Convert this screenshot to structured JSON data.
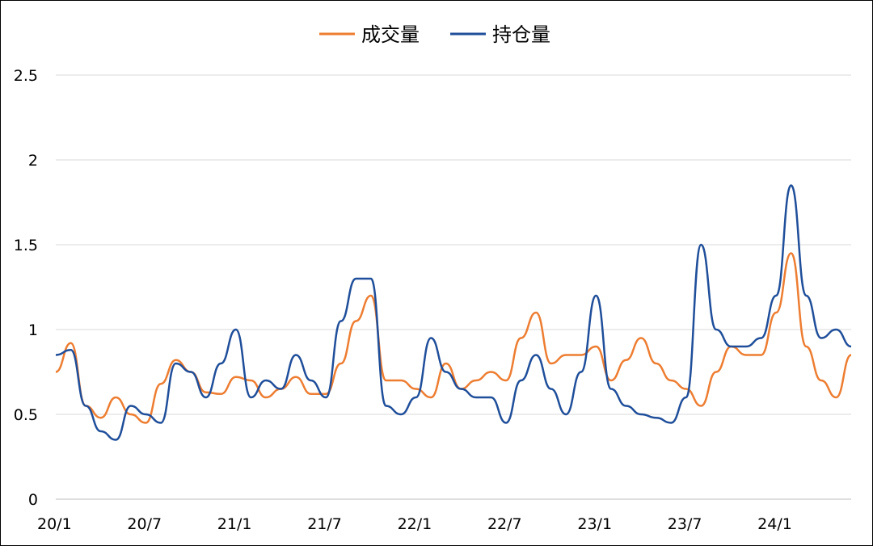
{
  "chart_data": {
    "type": "line",
    "title": "",
    "xlabel": "",
    "ylabel": "",
    "ylim": [
      0,
      2.5
    ],
    "yticks": [
      "0",
      "0.5",
      "1",
      "1.5",
      "2",
      "2.5"
    ],
    "xticks": [
      "20/1",
      "20/7",
      "21/1",
      "21/7",
      "22/1",
      "22/7",
      "23/1",
      "23/7",
      "24/1"
    ],
    "grid": "horizontal",
    "legend_position": "top",
    "x": [
      "2020-01",
      "2020-02",
      "2020-03",
      "2020-04",
      "2020-05",
      "2020-06",
      "2020-07",
      "2020-08",
      "2020-09",
      "2020-10",
      "2020-11",
      "2020-12",
      "2021-01",
      "2021-02",
      "2021-03",
      "2021-04",
      "2021-05",
      "2021-06",
      "2021-07",
      "2021-08",
      "2021-09",
      "2021-10",
      "2021-11",
      "2021-12",
      "2022-01",
      "2022-02",
      "2022-03",
      "2022-04",
      "2022-05",
      "2022-06",
      "2022-07",
      "2022-08",
      "2022-09",
      "2022-10",
      "2022-11",
      "2022-12",
      "2023-01",
      "2023-02",
      "2023-03",
      "2023-04",
      "2023-05",
      "2023-06",
      "2023-07",
      "2023-08",
      "2023-09",
      "2023-10",
      "2023-11",
      "2023-12",
      "2024-01",
      "2024-02",
      "2024-03",
      "2024-04",
      "2024-05",
      "2024-06"
    ],
    "series": [
      {
        "name": "成交量",
        "color": "#ED7D31",
        "values": [
          0.75,
          0.92,
          0.55,
          0.48,
          0.6,
          0.5,
          0.45,
          0.68,
          0.82,
          0.75,
          0.63,
          0.62,
          0.72,
          0.7,
          0.6,
          0.65,
          0.72,
          0.62,
          0.62,
          0.8,
          1.05,
          1.2,
          0.7,
          0.7,
          0.65,
          0.6,
          0.8,
          0.65,
          0.7,
          0.75,
          0.7,
          0.95,
          1.1,
          0.8,
          0.85,
          0.85,
          0.9,
          0.7,
          0.82,
          0.95,
          0.8,
          0.7,
          0.65,
          0.55,
          0.75,
          0.9,
          0.85,
          0.85,
          1.1,
          1.45,
          0.9,
          0.7,
          0.6,
          0.85
        ]
      },
      {
        "name": "持仓量",
        "color": "#1F4E9A",
        "values": [
          0.85,
          0.88,
          0.55,
          0.4,
          0.35,
          0.55,
          0.5,
          0.45,
          0.8,
          0.75,
          0.6,
          0.8,
          1.0,
          0.6,
          0.7,
          0.65,
          0.85,
          0.7,
          0.6,
          1.05,
          1.3,
          1.3,
          0.55,
          0.5,
          0.6,
          0.95,
          0.75,
          0.65,
          0.6,
          0.6,
          0.45,
          0.7,
          0.85,
          0.65,
          0.5,
          0.75,
          1.2,
          0.65,
          0.55,
          0.5,
          0.48,
          0.45,
          0.6,
          1.5,
          1.0,
          0.9,
          0.9,
          0.95,
          1.2,
          1.85,
          1.2,
          0.95,
          1.0,
          0.9
        ]
      }
    ]
  }
}
